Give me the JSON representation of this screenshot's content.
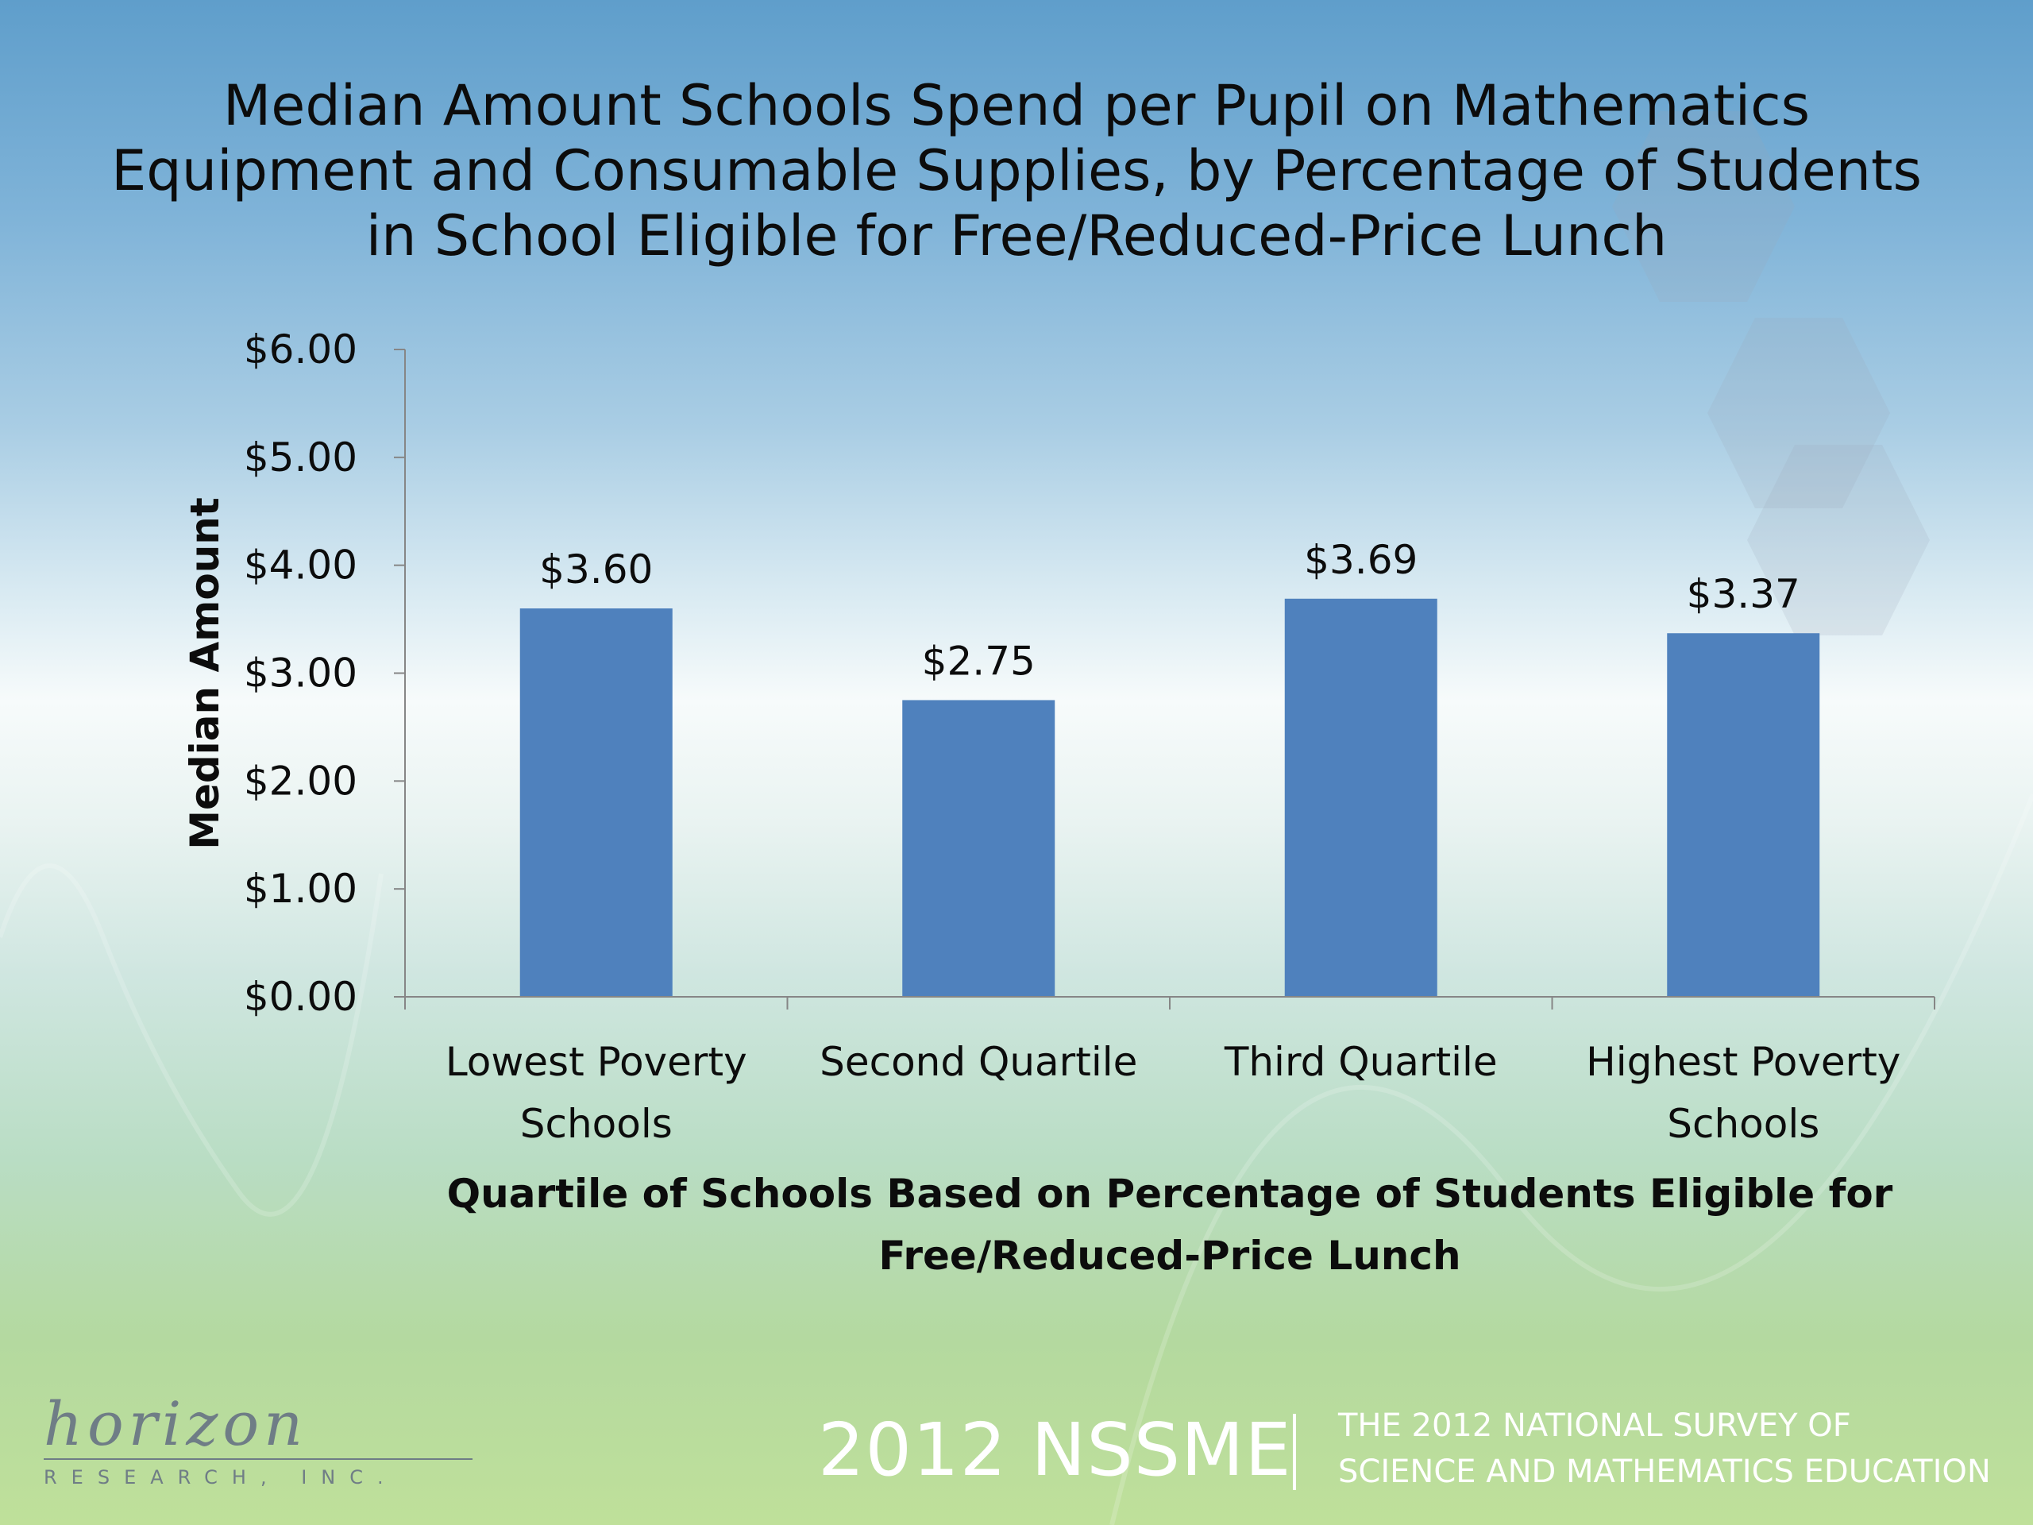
{
  "slide": {
    "title_lines": [
      "Median Amount Schools Spend per Pupil on Mathematics",
      "Equipment and Consumable Supplies, by Percentage of Students",
      "in School Eligible for Free/Reduced-Price Lunch"
    ]
  },
  "chart_data": {
    "type": "bar",
    "title": "Median Amount Schools Spend per Pupil on Mathematics Equipment and Consumable Supplies, by Percentage of Students in School Eligible for Free/Reduced-Price Lunch",
    "categories": [
      [
        "Lowest Poverty",
        "Schools"
      ],
      [
        "Second Quartile"
      ],
      [
        "Third Quartile"
      ],
      [
        "Highest Poverty",
        "Schools"
      ]
    ],
    "values": [
      3.6,
      2.75,
      3.69,
      3.37
    ],
    "value_labels": [
      "$3.60",
      "$2.75",
      "$3.69",
      "$3.37"
    ],
    "ylabel": "Median Amount",
    "xlabel_lines": [
      "Quartile of Schools Based on Percentage of Students Eligible for",
      "Free/Reduced-Price Lunch"
    ],
    "ylim": [
      0,
      6
    ],
    "yticks": [
      0,
      1,
      2,
      3,
      4,
      5,
      6
    ],
    "ytick_labels": [
      "$0.00",
      "$1.00",
      "$2.00",
      "$3.00",
      "$4.00",
      "$5.00",
      "$6.00"
    ],
    "grid": false,
    "legend": "none",
    "bar_color": "#4f81bd"
  },
  "footer": {
    "logo_text": "horizon",
    "logo_subtext": "RESEARCH, INC.",
    "brand": "2012 NSSME",
    "survey_lines": [
      "THE 2012 NATIONAL SURVEY OF",
      "SCIENCE AND MATHEMATICS EDUCATION"
    ]
  }
}
